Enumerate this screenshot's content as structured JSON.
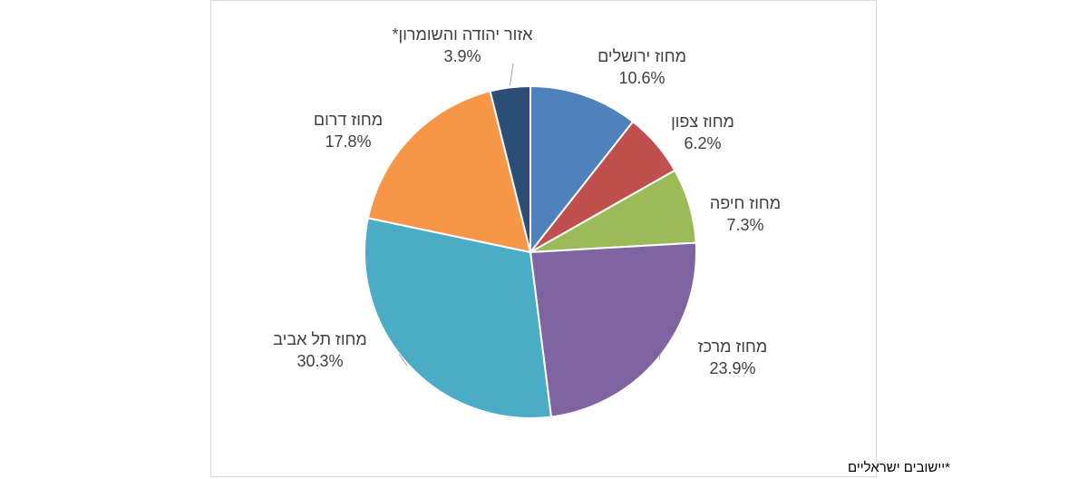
{
  "chart_data": {
    "type": "pie",
    "title": "",
    "slices": [
      {
        "name": "מחוז ירושלים",
        "value": 10.6,
        "label": "10.6%",
        "color": "#4F81BD"
      },
      {
        "name": "מחוז צפון",
        "value": 6.2,
        "label": "6.2%",
        "color": "#C0504D"
      },
      {
        "name": "מחוז חיפה",
        "value": 7.3,
        "label": "7.3%",
        "color": "#9BBB59"
      },
      {
        "name": "מחוז מרכז",
        "value": 23.9,
        "label": "23.9%",
        "color": "#8064A2"
      },
      {
        "name": "מחוז תל אביב",
        "value": 30.3,
        "label": "30.3%",
        "color": "#4BACC6"
      },
      {
        "name": "מחוז דרום",
        "value": 17.8,
        "label": "17.8%",
        "color": "#F79646"
      },
      {
        "name": "אזור יהודה והשומרון*",
        "value": 3.9,
        "label": "3.9%",
        "color": "#2C4D75"
      }
    ],
    "legend": "none",
    "data_labels": "outside-with-leader-lines"
  },
  "footnote": "*יישובים  ישראליים"
}
